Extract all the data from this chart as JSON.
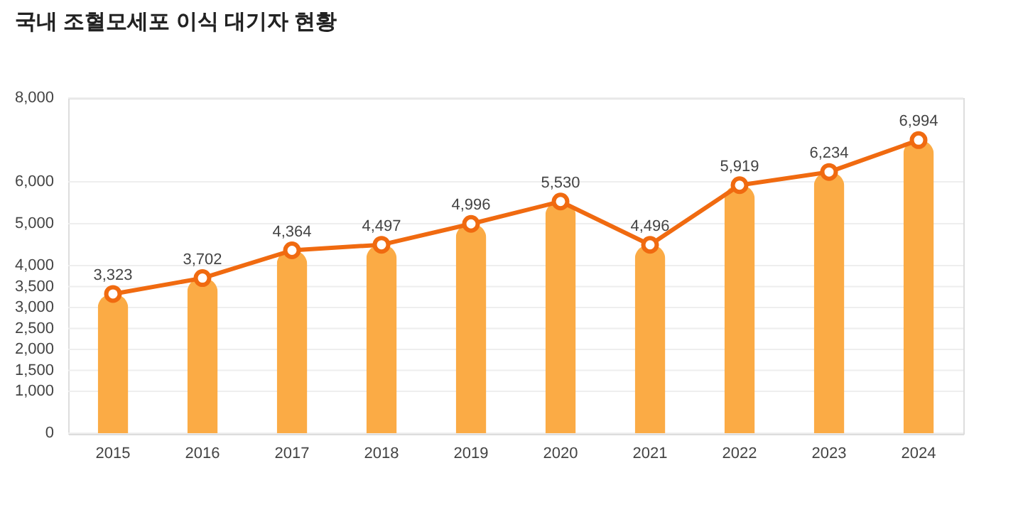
{
  "chart_data": {
    "type": "bar",
    "title": "국내 조혈모세포 이식 대기자 현황",
    "categories": [
      "2015",
      "2016",
      "2017",
      "2018",
      "2019",
      "2020",
      "2021",
      "2022",
      "2023",
      "2024"
    ],
    "series": [
      {
        "color": "#fbab45",
        "values": [
          3323,
          3702,
          4364,
          4497,
          4996,
          5530,
          4496,
          5919,
          6234,
          6994
        ]
      },
      {
        "type": "line",
        "color": "#f06a10",
        "values": [
          3323,
          3702,
          4364,
          4497,
          4996,
          5530,
          4496,
          5919,
          6234,
          6994
        ],
        "value_labels": [
          "3,323",
          "3,702",
          "4,364",
          "4,497",
          "4,996",
          "5,530",
          "4,496",
          "5,919",
          "6,234",
          "6,994"
        ]
      }
    ],
    "ylim": [
      0,
      8000
    ],
    "yticks": [
      0,
      {
        "value": 1000,
        "label": "1,000"
      },
      {
        "value": 1500,
        "label": "1,500"
      },
      {
        "value": 2000,
        "label": "2,000"
      },
      {
        "value": 2500,
        "label": "2,500"
      },
      {
        "value": 3000,
        "label": "3,000"
      },
      {
        "value": 3500,
        "label": "3,500"
      },
      {
        "value": 4000,
        "label": "4,000"
      },
      {
        "value": 5000,
        "label": "5,000"
      },
      {
        "value": 6000,
        "label": "6,000"
      },
      {
        "value": 8000,
        "label": "8,000"
      }
    ],
    "grid": "y",
    "marker": "circle"
  }
}
